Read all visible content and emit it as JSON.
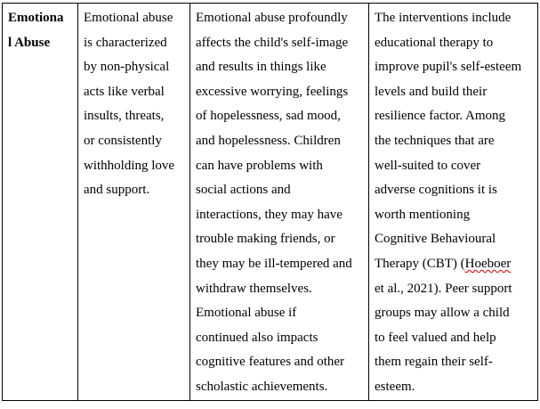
{
  "table": {
    "row": [
      {
        "lines": [
          "Emotiona",
          "l Abuse"
        ],
        "bold": true
      },
      {
        "lines": [
          "Emotional abuse",
          "is characterized",
          "by non-physical",
          "acts like verbal",
          "insults, threats,",
          "or consistently",
          "withholding love",
          "and support."
        ]
      },
      {
        "lines": [
          "Emotional abuse profoundly",
          "affects the child's self-image",
          "and results in things like",
          "excessive worrying, feelings",
          "of hopelessness, sad mood,",
          "and hopelessness. Children",
          "can have problems with",
          "social actions and",
          "interactions, they may have",
          "trouble making friends, or",
          "they may be ill-tempered and",
          "withdraw themselves.",
          "Emotional abuse if",
          "continued also impacts",
          "cognitive features and other",
          "scholastic achievements."
        ]
      },
      {
        "lines": [
          "The interventions include",
          "educational therapy to",
          "improve pupil's self-esteem",
          "levels and build their",
          "resilience factor. Among",
          "the techniques that are",
          "well-suited to cover",
          "adverse cognitions it is",
          "worth mentioning",
          "Cognitive Behavioural",
          "Therapy (CBT) (Hoeboer",
          "et al., 2021). Peer support",
          "groups may allow a child",
          "to feel valued and help",
          "them regain their self-",
          "esteem."
        ]
      }
    ]
  }
}
